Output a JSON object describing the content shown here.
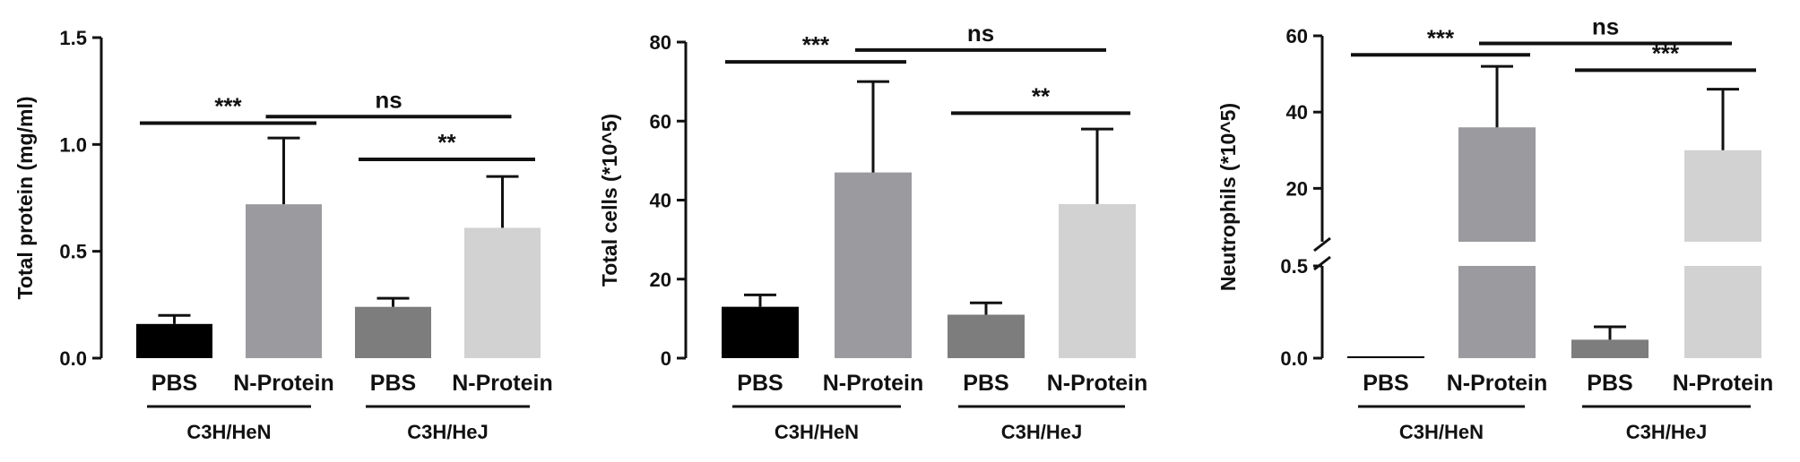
{
  "colors": {
    "bars": [
      "#000000",
      "#9b9b9f",
      "#7d7d7d",
      "#d2d2d2"
    ],
    "axis": "#111111"
  },
  "chart_data": [
    {
      "type": "bar",
      "ylabel": "Total protein (mg/ml)",
      "ylim": [
        0,
        1.5
      ],
      "yticks": [
        "0.0",
        "0.5",
        "1.0",
        "1.5"
      ],
      "yticks_values": [
        0,
        0.5,
        1.0,
        1.5
      ],
      "categories": [
        "PBS",
        "N-Protein",
        "PBS",
        "N-Protein"
      ],
      "groups": [
        {
          "label": "C3H/HeN",
          "members": [
            0,
            1
          ]
        },
        {
          "label": "C3H/HeJ",
          "members": [
            2,
            3
          ]
        }
      ],
      "values": [
        0.16,
        0.72,
        0.24,
        0.61
      ],
      "errors": [
        0.04,
        0.31,
        0.04,
        0.24
      ],
      "significance": [
        {
          "label": "***",
          "from": 0,
          "to": 1,
          "y": 1.1
        },
        {
          "label": "ns",
          "from": 1,
          "to": 3,
          "y": 1.13
        },
        {
          "label": "**",
          "from": 2,
          "to": 3,
          "y": 0.93
        }
      ]
    },
    {
      "type": "bar",
      "ylabel": "Total cells (*10^5)",
      "ylim": [
        0,
        80
      ],
      "yticks": [
        "0",
        "20",
        "40",
        "60",
        "80"
      ],
      "yticks_values": [
        0,
        20,
        40,
        60,
        80
      ],
      "categories": [
        "PBS",
        "N-Protein",
        "PBS",
        "N-Protein"
      ],
      "groups": [
        {
          "label": "C3H/HeN",
          "members": [
            0,
            1
          ]
        },
        {
          "label": "C3H/HeJ",
          "members": [
            2,
            3
          ]
        }
      ],
      "values": [
        13,
        47,
        11,
        39
      ],
      "errors": [
        3,
        23,
        3,
        19
      ],
      "significance": [
        {
          "label": "***",
          "from": 0,
          "to": 1,
          "y": 75
        },
        {
          "label": "ns",
          "from": 1,
          "to": 3,
          "y": 78
        },
        {
          "label": "**",
          "from": 2,
          "to": 3,
          "y": 62
        }
      ]
    },
    {
      "type": "bar",
      "ylabel": "Neutrophils (*10^5)",
      "broken_axis": true,
      "lower_ylim": [
        0,
        0.5
      ],
      "upper_ylim": [
        6,
        60
      ],
      "yticks_lower": [
        "0.0",
        "0.5"
      ],
      "yticks_lower_values": [
        0,
        0.5
      ],
      "yticks_upper": [
        "20",
        "40",
        "60"
      ],
      "yticks_upper_values": [
        20,
        40,
        60
      ],
      "categories": [
        "PBS",
        "N-Protein",
        "PBS",
        "N-Protein"
      ],
      "groups": [
        {
          "label": "C3H/HeN",
          "members": [
            0,
            1
          ]
        },
        {
          "label": "C3H/HeJ",
          "members": [
            2,
            3
          ]
        }
      ],
      "values": [
        0.01,
        36,
        0.1,
        30
      ],
      "errors": [
        0,
        16,
        0.07,
        16
      ],
      "significance": [
        {
          "label": "***",
          "from": 0,
          "to": 1,
          "y": 55
        },
        {
          "label": "ns",
          "from": 1,
          "to": 3,
          "y": 58
        },
        {
          "label": "***",
          "from": 2,
          "to": 3,
          "y": 51
        }
      ]
    }
  ]
}
